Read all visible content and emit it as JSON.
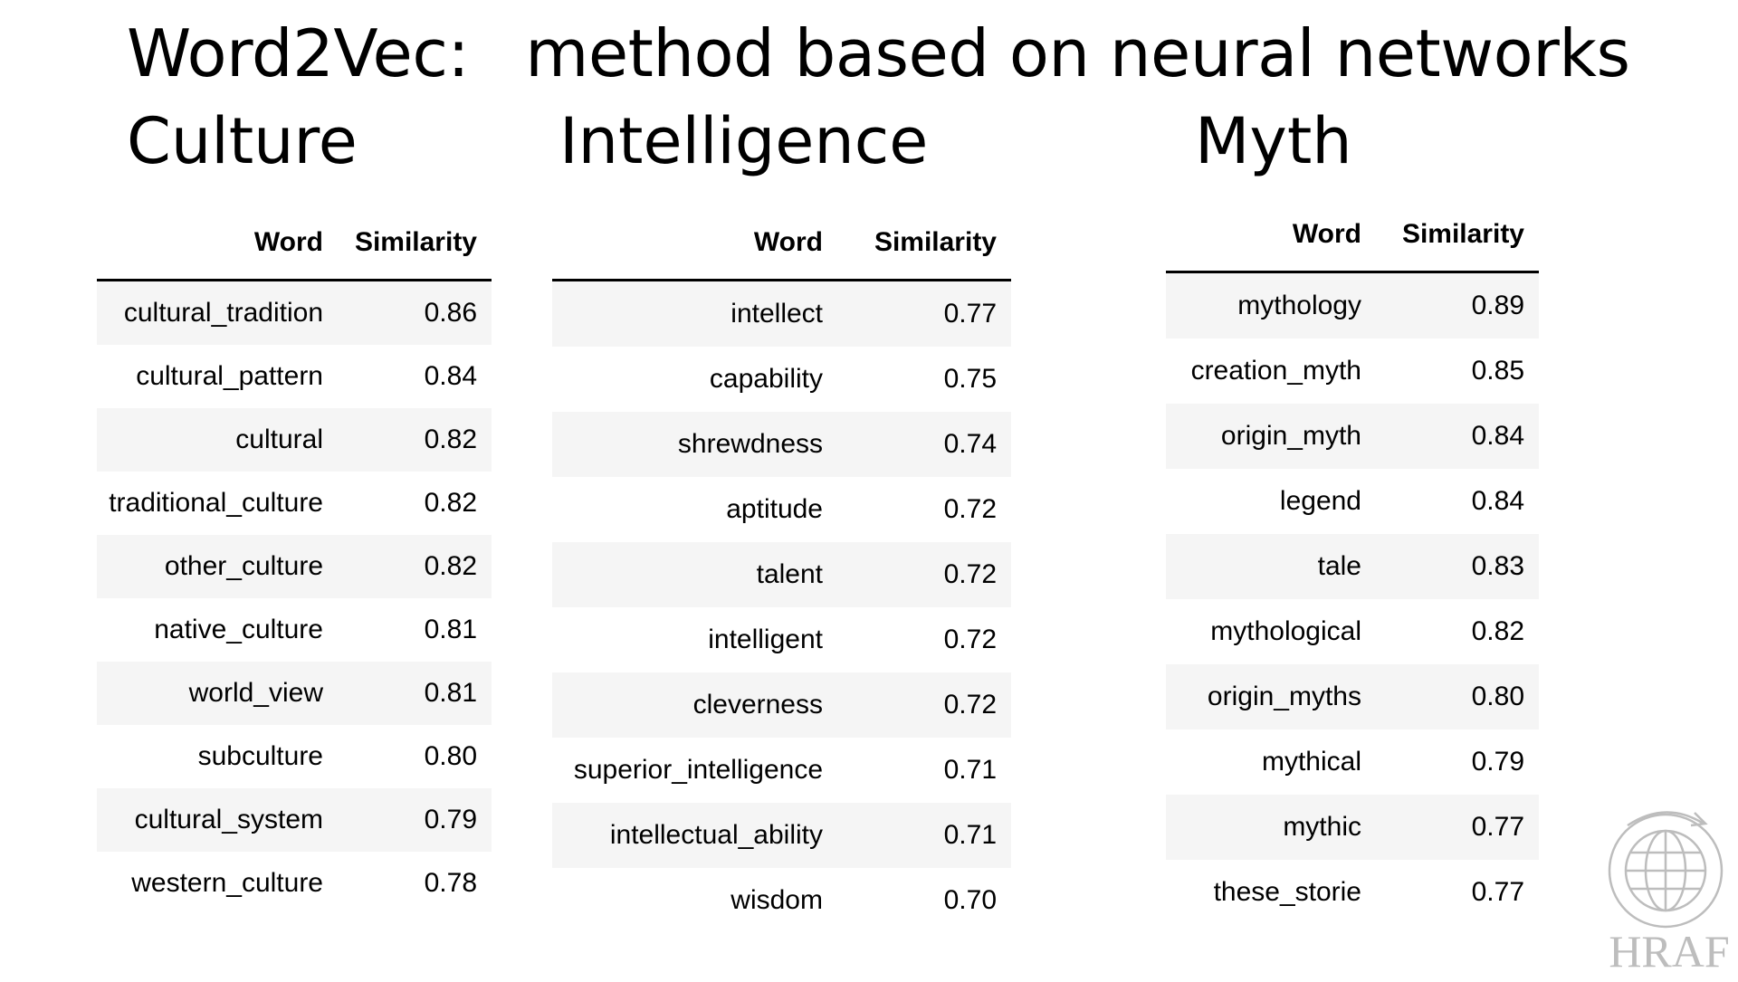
{
  "title": {
    "prefix": "Word2Vec:",
    "rest": "method based on neural networks"
  },
  "columns": {
    "culture": {
      "heading": "Culture",
      "header_word": "Word",
      "header_sim": "Similarity",
      "rows": [
        {
          "word": "cultural_tradition",
          "sim": "0.86"
        },
        {
          "word": "cultural_pattern",
          "sim": "0.84"
        },
        {
          "word": "cultural",
          "sim": "0.82"
        },
        {
          "word": "traditional_culture",
          "sim": "0.82"
        },
        {
          "word": "other_culture",
          "sim": "0.82"
        },
        {
          "word": "native_culture",
          "sim": "0.81"
        },
        {
          "word": "world_view",
          "sim": "0.81"
        },
        {
          "word": "subculture",
          "sim": "0.80"
        },
        {
          "word": "cultural_system",
          "sim": "0.79"
        },
        {
          "word": "western_culture",
          "sim": "0.78"
        }
      ]
    },
    "intelligence": {
      "heading": "Intelligence",
      "header_word": "Word",
      "header_sim": "Similarity",
      "rows": [
        {
          "word": "intellect",
          "sim": "0.77"
        },
        {
          "word": "capability",
          "sim": "0.75"
        },
        {
          "word": "shrewdness",
          "sim": "0.74"
        },
        {
          "word": "aptitude",
          "sim": "0.72"
        },
        {
          "word": "talent",
          "sim": "0.72"
        },
        {
          "word": "intelligent",
          "sim": "0.72"
        },
        {
          "word": "cleverness",
          "sim": "0.72"
        },
        {
          "word": "superior_intelligence",
          "sim": "0.71"
        },
        {
          "word": "intellectual_ability",
          "sim": "0.71"
        },
        {
          "word": "wisdom",
          "sim": "0.70"
        }
      ]
    },
    "myth": {
      "heading": "Myth",
      "header_word": "Word",
      "header_sim": "Similarity",
      "rows": [
        {
          "word": "mythology",
          "sim": "0.89"
        },
        {
          "word": "creation_myth",
          "sim": "0.85"
        },
        {
          "word": "origin_myth",
          "sim": "0.84"
        },
        {
          "word": "legend",
          "sim": "0.84"
        },
        {
          "word": "tale",
          "sim": "0.83"
        },
        {
          "word": "mythological",
          "sim": "0.82"
        },
        {
          "word": "origin_myths",
          "sim": "0.80"
        },
        {
          "word": "mythical",
          "sim": "0.79"
        },
        {
          "word": "mythic",
          "sim": "0.77"
        },
        {
          "word": "these_storie",
          "sim": "0.77"
        }
      ]
    }
  },
  "logo": {
    "icon": "globe-icon",
    "text": "HRAF",
    "color": "#bdbdbd"
  }
}
